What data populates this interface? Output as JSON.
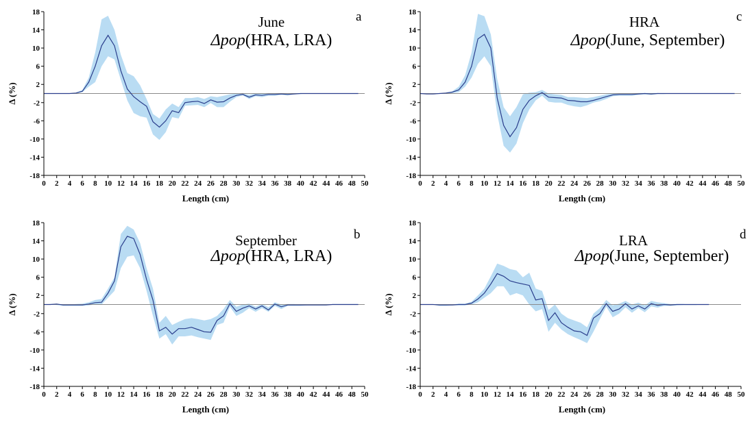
{
  "colors": {
    "band": "#b9dcf3",
    "line": "#2a3e8c",
    "zero": "#8a8a8a",
    "axis": "#000000"
  },
  "chart_data": [
    {
      "id": "a",
      "type": "area",
      "letter": "a",
      "title_line1": "June",
      "delta_symbol": "Δpop",
      "title_args": "(HRA, LRA)",
      "xlabel": "Length (cm)",
      "ylabel": "Δ (%)",
      "xlim": [
        0,
        50
      ],
      "ylim": [
        -18,
        18
      ],
      "xticks": [
        0,
        2,
        4,
        6,
        8,
        10,
        12,
        14,
        16,
        18,
        20,
        22,
        24,
        26,
        28,
        30,
        32,
        34,
        36,
        38,
        40,
        42,
        44,
        46,
        48,
        50
      ],
      "yticks": [
        18,
        14,
        10,
        6,
        2,
        -2,
        -6,
        -10,
        -14,
        -18
      ],
      "series": [
        {
          "x": [
            0,
            1,
            2,
            3,
            4,
            5,
            6,
            7,
            8,
            9,
            10,
            11,
            12,
            13,
            14,
            15,
            16,
            17,
            18,
            19,
            20,
            21,
            22,
            23,
            24,
            25,
            26,
            27,
            28,
            29,
            30,
            31,
            32,
            33,
            34,
            35,
            36,
            37,
            38,
            39,
            40,
            41,
            42,
            43,
            44,
            45,
            46,
            47,
            48,
            49
          ],
          "mean": [
            0,
            0,
            0,
            0,
            0,
            0.1,
            0.5,
            2.5,
            6,
            10.5,
            12.8,
            10.5,
            5,
            1,
            -0.7,
            -1.8,
            -2.8,
            -6.2,
            -7.4,
            -6,
            -3.8,
            -4.2,
            -2,
            -1.8,
            -1.7,
            -2.2,
            -1.4,
            -1.9,
            -1.8,
            -1,
            -0.4,
            -0.2,
            -0.8,
            -0.3,
            -0.4,
            -0.2,
            -0.2,
            -0.1,
            -0.2,
            -0.1,
            0,
            0,
            0,
            0,
            0,
            0,
            0,
            0,
            0,
            0
          ],
          "lower": [
            0,
            0,
            0,
            0,
            0,
            0,
            0.3,
            1.5,
            2.5,
            6,
            8.2,
            7.5,
            3,
            -1.5,
            -4.3,
            -5,
            -5.3,
            -9,
            -10.2,
            -8.5,
            -5.2,
            -5.5,
            -2.7,
            -2.6,
            -2.5,
            -3,
            -2.1,
            -3,
            -3,
            -1.8,
            -0.8,
            -0.4,
            -1.2,
            -0.6,
            -0.8,
            -0.5,
            -0.5,
            -0.3,
            -0.4,
            -0.2,
            -0.1,
            0,
            0,
            0,
            0,
            0,
            0,
            0,
            0,
            0
          ],
          "upper": [
            0,
            0,
            0,
            0,
            0,
            0.2,
            0.8,
            3.5,
            9,
            16.3,
            17.1,
            14,
            8.5,
            4.5,
            3.8,
            1.8,
            -1.2,
            -4.5,
            -5.5,
            -3.5,
            -2.2,
            -3,
            -1,
            -1,
            -0.8,
            -1.2,
            -0.6,
            -0.8,
            -0.5,
            -0.2,
            0,
            0,
            -0.3,
            0,
            0,
            0,
            0,
            0,
            0,
            0,
            0,
            0,
            0,
            0,
            0,
            0,
            0,
            0,
            0,
            0
          ]
        }
      ]
    },
    {
      "id": "c",
      "type": "area",
      "letter": "c",
      "title_line1": "HRA",
      "delta_symbol": "Δpop",
      "title_args": "(June, September)",
      "xlabel": "Length (cm)",
      "ylabel": "Δ (%)",
      "xlim": [
        0,
        50
      ],
      "ylim": [
        -18,
        18
      ],
      "xticks": [
        0,
        2,
        4,
        6,
        8,
        10,
        12,
        14,
        16,
        18,
        20,
        22,
        24,
        26,
        28,
        30,
        32,
        34,
        36,
        38,
        40,
        42,
        44,
        46,
        48,
        50
      ],
      "yticks": [
        18,
        14,
        10,
        6,
        2,
        -2,
        -6,
        -10,
        -14,
        -18
      ],
      "series": [
        {
          "x": [
            0,
            1,
            2,
            3,
            4,
            5,
            6,
            7,
            8,
            9,
            10,
            11,
            12,
            13,
            14,
            15,
            16,
            17,
            18,
            19,
            20,
            21,
            22,
            23,
            24,
            25,
            26,
            27,
            28,
            29,
            30,
            31,
            32,
            33,
            34,
            35,
            36,
            37,
            38,
            39,
            40,
            41,
            42,
            43,
            44,
            45,
            46,
            47,
            48,
            49
          ],
          "mean": [
            0,
            -0.1,
            -0.1,
            0,
            0.1,
            0.3,
            0.8,
            2.5,
            6,
            12,
            13,
            10,
            -1,
            -7,
            -9.5,
            -7.5,
            -3.5,
            -1.5,
            -0.5,
            0.2,
            -0.8,
            -0.9,
            -1,
            -1.5,
            -1.6,
            -1.8,
            -1.8,
            -1.5,
            -1.1,
            -0.7,
            -0.3,
            -0.2,
            -0.2,
            -0.2,
            -0.1,
            0,
            -0.1,
            0,
            0,
            0,
            0,
            0,
            0,
            0,
            0,
            0,
            0,
            0,
            0,
            0
          ],
          "lower": [
            0,
            -0.1,
            -0.1,
            0,
            0,
            0.1,
            0.3,
            1.5,
            3.5,
            6.5,
            8.2,
            6,
            -4.5,
            -11.5,
            -13,
            -11,
            -6.5,
            -3.5,
            -1.5,
            -0.5,
            -1.8,
            -2,
            -2,
            -2.5,
            -2.8,
            -3,
            -2.6,
            -2,
            -1.7,
            -1.2,
            -0.6,
            -0.5,
            -0.5,
            -0.5,
            -0.3,
            -0.2,
            -0.3,
            -0.1,
            -0.1,
            0,
            0,
            0,
            0,
            0,
            0,
            0,
            0,
            0,
            0,
            0
          ],
          "upper": [
            0,
            0,
            0,
            0,
            0.2,
            0.5,
            1.5,
            4,
            9,
            17.5,
            17,
            13,
            3.2,
            -3,
            -5,
            -3,
            -0.2,
            0.2,
            0.3,
            0.8,
            0,
            -0.2,
            -0.3,
            -0.8,
            -0.8,
            -0.9,
            -1,
            -0.8,
            -0.5,
            -0.2,
            0,
            0,
            0,
            0,
            0.1,
            0.1,
            0.1,
            0.1,
            0,
            0,
            0,
            0,
            0,
            0,
            0,
            0,
            0,
            0,
            0,
            0
          ]
        }
      ]
    },
    {
      "id": "b",
      "type": "area",
      "letter": "b",
      "title_line1": "September",
      "delta_symbol": "Δpop",
      "title_args": "(HRA, LRA)",
      "xlabel": "Length (cm)",
      "ylabel": "Δ (%)",
      "xlim": [
        0,
        50
      ],
      "ylim": [
        -18,
        18
      ],
      "xticks": [
        0,
        2,
        4,
        6,
        8,
        10,
        12,
        14,
        16,
        18,
        20,
        22,
        24,
        26,
        28,
        30,
        32,
        34,
        36,
        38,
        40,
        42,
        44,
        46,
        48,
        50
      ],
      "yticks": [
        18,
        14,
        10,
        6,
        2,
        -2,
        -6,
        -10,
        -14,
        -18
      ],
      "series": [
        {
          "x": [
            0,
            1,
            2,
            3,
            4,
            5,
            6,
            7,
            8,
            9,
            10,
            11,
            12,
            13,
            14,
            15,
            16,
            17,
            18,
            19,
            20,
            21,
            22,
            23,
            24,
            25,
            26,
            27,
            28,
            29,
            30,
            31,
            32,
            33,
            34,
            35,
            36,
            37,
            38,
            39,
            40,
            41,
            42,
            43,
            44,
            45,
            46,
            47,
            48,
            49
          ],
          "mean": [
            0,
            0,
            0.1,
            -0.1,
            -0.1,
            -0.1,
            -0.1,
            0.1,
            0.4,
            0.5,
            2.5,
            5.2,
            12.7,
            15,
            14.5,
            11,
            5.5,
            1,
            -5.8,
            -5,
            -6.5,
            -5.3,
            -5.3,
            -5,
            -5.5,
            -6,
            -6.1,
            -3.5,
            -2.5,
            0.2,
            -1.5,
            -0.8,
            -0.3,
            -1,
            -0.3,
            -1.2,
            0.1,
            -0.5,
            -0.1,
            -0.1,
            -0.1,
            -0.1,
            -0.1,
            -0.1,
            -0.1,
            0,
            0,
            0,
            0,
            0
          ],
          "lower": [
            0,
            0,
            -0.1,
            -0.3,
            -0.3,
            -0.3,
            -0.3,
            -0.2,
            0,
            0,
            1.5,
            3,
            8,
            10.5,
            10.8,
            8,
            3,
            -2.5,
            -7.5,
            -6.5,
            -8.8,
            -7,
            -7,
            -6.8,
            -7.2,
            -7.5,
            -7.8,
            -4.5,
            -4,
            -0.5,
            -2.5,
            -1.8,
            -0.8,
            -1.6,
            -0.8,
            -1.6,
            -0.3,
            -1,
            -0.3,
            -0.3,
            -0.3,
            -0.2,
            -0.2,
            -0.2,
            -0.2,
            0,
            0,
            0,
            0,
            0
          ],
          "upper": [
            0,
            0.1,
            0.2,
            0,
            0,
            0.1,
            0.2,
            0.5,
            1,
            1.2,
            3.5,
            6,
            15.5,
            17.3,
            16.5,
            13.5,
            8,
            3.5,
            -4,
            -2.5,
            -4.5,
            -3.8,
            -3.2,
            -3,
            -3.2,
            -3.5,
            -3.2,
            -2.5,
            -1,
            1,
            -0.5,
            0,
            0.2,
            -0.5,
            0.1,
            -0.6,
            0.5,
            0,
            0.1,
            0.1,
            0,
            0,
            0,
            0,
            0,
            0.1,
            0.1,
            0.1,
            0.1,
            0.1
          ]
        }
      ]
    },
    {
      "id": "d",
      "type": "area",
      "letter": "d",
      "title_line1": "LRA",
      "delta_symbol": "Δpop",
      "title_args": "(June, September)",
      "xlabel": "Length (cm)",
      "ylabel": "Δ (%)",
      "xlim": [
        0,
        50
      ],
      "ylim": [
        -18,
        18
      ],
      "xticks": [
        0,
        2,
        4,
        6,
        8,
        10,
        12,
        14,
        16,
        18,
        20,
        22,
        24,
        26,
        28,
        30,
        32,
        34,
        36,
        38,
        40,
        42,
        44,
        46,
        48,
        50
      ],
      "yticks": [
        18,
        14,
        10,
        6,
        2,
        -2,
        -6,
        -10,
        -14,
        -18
      ],
      "series": [
        {
          "x": [
            0,
            1,
            2,
            3,
            4,
            5,
            6,
            7,
            8,
            9,
            10,
            11,
            12,
            13,
            14,
            15,
            16,
            17,
            18,
            19,
            20,
            21,
            22,
            23,
            24,
            25,
            26,
            27,
            28,
            29,
            30,
            31,
            32,
            33,
            34,
            35,
            36,
            37,
            38,
            39,
            40,
            41,
            42,
            43,
            44,
            45
          ],
          "mean": [
            0,
            0,
            0,
            -0.1,
            -0.1,
            -0.1,
            0,
            0,
            0.3,
            1.2,
            2.5,
            4.5,
            6.8,
            6.2,
            5.2,
            4.8,
            4.5,
            4.2,
            1,
            1.3,
            -3.5,
            -1.8,
            -4,
            -5,
            -5.8,
            -6,
            -6.8,
            -3,
            -2,
            0.2,
            -1.5,
            -1,
            0.2,
            -1,
            -0.3,
            -1,
            0.2,
            -0.2,
            0,
            -0.1,
            0,
            0,
            0,
            0,
            0,
            0
          ],
          "lower": [
            0,
            0,
            0,
            -0.3,
            -0.3,
            -0.2,
            -0.2,
            -0.2,
            0,
            0.5,
            1.5,
            2.5,
            4,
            4,
            2,
            2.5,
            2,
            0,
            -1.5,
            -1,
            -6,
            -4,
            -5.5,
            -6.5,
            -7.2,
            -7.8,
            -8.5,
            -6,
            -3.2,
            -0.5,
            -2.8,
            -2,
            -0.6,
            -1.8,
            -0.8,
            -1.7,
            -0.4,
            -0.7,
            -0.3,
            -0.3,
            -0.2,
            -0.1,
            -0.1,
            -0.1,
            0,
            0
          ],
          "upper": [
            0,
            0,
            0,
            0,
            0,
            0,
            0.2,
            0.2,
            0.6,
            2,
            3.5,
            6.2,
            9,
            8.5,
            7.8,
            7.5,
            6,
            7,
            3.5,
            3,
            -1.2,
            0,
            -2,
            -3,
            -3.5,
            -4,
            -5,
            -2,
            -0.8,
            1,
            -0.2,
            0.2,
            0.8,
            0,
            0.4,
            -0.2,
            0.8,
            0.5,
            0.3,
            0.1,
            0.1,
            0.1,
            0,
            0,
            0,
            0
          ]
        }
      ]
    }
  ]
}
